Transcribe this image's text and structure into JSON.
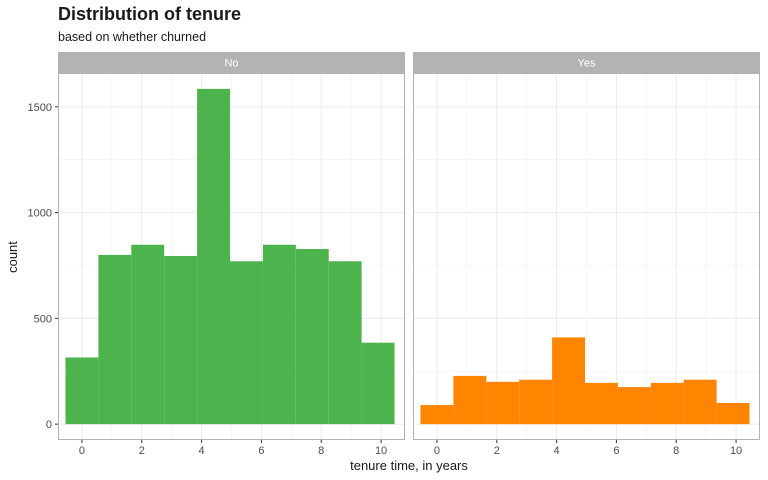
{
  "chart_data": {
    "type": "bar",
    "title": "Distribution of tenure",
    "subtitle": "based on whether churned",
    "xlabel": "tenure time, in years",
    "ylabel": "count",
    "xlim": [
      -0.8,
      10.8
    ],
    "ylim": [
      -75,
      1660
    ],
    "x_ticks": [
      0,
      2,
      4,
      6,
      8,
      10
    ],
    "y_ticks": [
      0,
      500,
      1000,
      1500
    ],
    "bin_width": 1.1,
    "bin_centers": [
      0,
      1.1,
      2.2,
      3.3,
      4.4,
      5.5,
      6.6,
      7.7,
      8.8,
      9.9
    ],
    "grid": true,
    "panels": [
      {
        "name": "No",
        "color": "#4db34d",
        "values": [
          315,
          800,
          848,
          795,
          1585,
          770,
          848,
          828,
          770,
          385
        ]
      },
      {
        "name": "Yes",
        "color": "#ff8500",
        "values": [
          90,
          228,
          200,
          210,
          410,
          195,
          175,
          195,
          210,
          100
        ]
      }
    ]
  }
}
